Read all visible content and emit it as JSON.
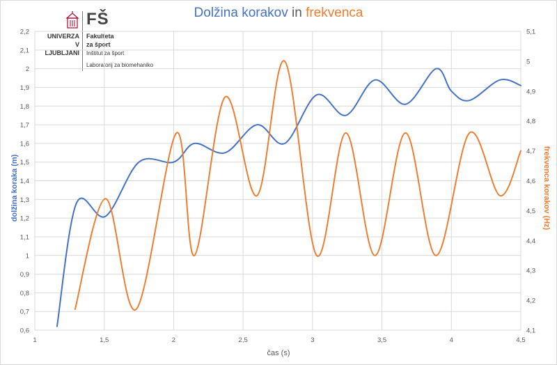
{
  "logo": {
    "brand": "FŠ",
    "university_line1": "UNIVERZA",
    "university_line2": "V LJUBLJANI",
    "faculty_line1": "Fakulteta",
    "faculty_line2": "za šport",
    "institute": "Inštitut za šport",
    "laboratory": "Laboratorij za biomehaniko"
  },
  "chart_data": {
    "type": "line",
    "title_parts": [
      "Dolžina korakov",
      " in ",
      "frekvenca"
    ],
    "xlabel": "čas (s)",
    "ylabel_left": "dolžina koraka (m)",
    "ylabel_right": "frekvenca korakov (Hz)",
    "xlim": [
      1,
      4.5
    ],
    "ylim_left": [
      0.6,
      2.2
    ],
    "ylim_right": [
      4.1,
      5.1
    ],
    "x_ticks": [
      "1",
      "1,5",
      "2",
      "2,5",
      "3",
      "3,5",
      "4",
      "4,5"
    ],
    "y_ticks_left": [
      "0,6",
      "0,7",
      "0,8",
      "0,9",
      "1",
      "1,1",
      "1,2",
      "1,3",
      "1,4",
      "1,5",
      "1,6",
      "1,7",
      "1,8",
      "1,9",
      "2",
      "2,1",
      "2,2"
    ],
    "y_ticks_right": [
      "4,1",
      "4,2",
      "4,3",
      "4,4",
      "4,5",
      "4,6",
      "4,7",
      "4,8",
      "4,9",
      "5",
      "5,1"
    ],
    "grid": true,
    "colors": {
      "series1": "#4472c4",
      "series2": "#ed7d31",
      "grid": "#d9d9d9",
      "axis_text": "#595959"
    },
    "series": [
      {
        "name": "dolžina koraka",
        "axis": "left",
        "x": [
          1.16,
          1.3,
          1.51,
          1.75,
          2.0,
          2.15,
          2.37,
          2.6,
          2.8,
          3.03,
          3.24,
          3.45,
          3.67,
          3.89,
          4.0,
          4.13,
          4.35,
          4.5
        ],
        "y": [
          0.62,
          1.28,
          1.21,
          1.5,
          1.5,
          1.6,
          1.55,
          1.7,
          1.6,
          1.86,
          1.75,
          1.94,
          1.81,
          2.0,
          1.88,
          1.83,
          1.94,
          1.91
        ]
      },
      {
        "name": "frekvenca korakov",
        "axis": "right",
        "x": [
          1.29,
          1.51,
          1.73,
          2.02,
          2.15,
          2.37,
          2.6,
          2.8,
          3.03,
          3.24,
          3.45,
          3.67,
          3.89,
          4.13,
          4.35,
          4.5
        ],
        "y": [
          4.17,
          4.54,
          4.17,
          4.76,
          4.35,
          4.88,
          4.55,
          5.0,
          4.35,
          4.76,
          4.35,
          4.76,
          4.35,
          4.76,
          4.55,
          4.7
        ]
      }
    ]
  }
}
